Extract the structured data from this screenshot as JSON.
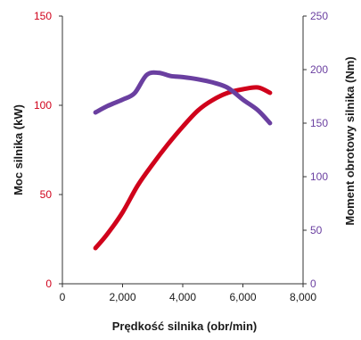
{
  "chart_data": {
    "type": "line",
    "title": "",
    "xlabel": "Prędkość silnika (obr/min)",
    "ylabel_left": "Moc silnika (kW)",
    "ylabel_right": "Moment obrotowy silnika (Nm)",
    "xlim": [
      0,
      8000
    ],
    "ylim_left": [
      0,
      150
    ],
    "ylim_right": [
      0,
      250
    ],
    "x_ticks": [
      0,
      2000,
      4000,
      6000,
      8000
    ],
    "x_tick_labels": [
      "0",
      "2,000",
      "4,000",
      "6,000",
      "8,000"
    ],
    "y_left_ticks": [
      0,
      50,
      100,
      150
    ],
    "y_left_tick_labels": [
      "0",
      "50",
      "100",
      "150"
    ],
    "y_right_ticks": [
      0,
      50,
      100,
      150,
      200,
      250
    ],
    "y_right_tick_labels": [
      "0",
      "50",
      "100",
      "150",
      "200",
      "250"
    ],
    "grid": false,
    "legend": "none",
    "series": [
      {
        "axis": "left",
        "color": "#d0021b",
        "x": [
          1100,
          1500,
          2000,
          2500,
          3000,
          3500,
          4000,
          4500,
          5000,
          5500,
          6000,
          6500,
          6900
        ],
        "y": [
          20,
          28,
          40,
          55,
          67,
          78,
          88,
          97,
          103,
          107,
          109,
          110,
          107
        ]
      },
      {
        "axis": "right",
        "color": "#6a3fa0",
        "x": [
          1100,
          1500,
          2000,
          2400,
          2800,
          3200,
          3600,
          4000,
          4500,
          5000,
          5500,
          6000,
          6500,
          6900
        ],
        "y": [
          160,
          166,
          172,
          178,
          195,
          197,
          194,
          193,
          191,
          188,
          183,
          172,
          162,
          150
        ]
      }
    ]
  }
}
